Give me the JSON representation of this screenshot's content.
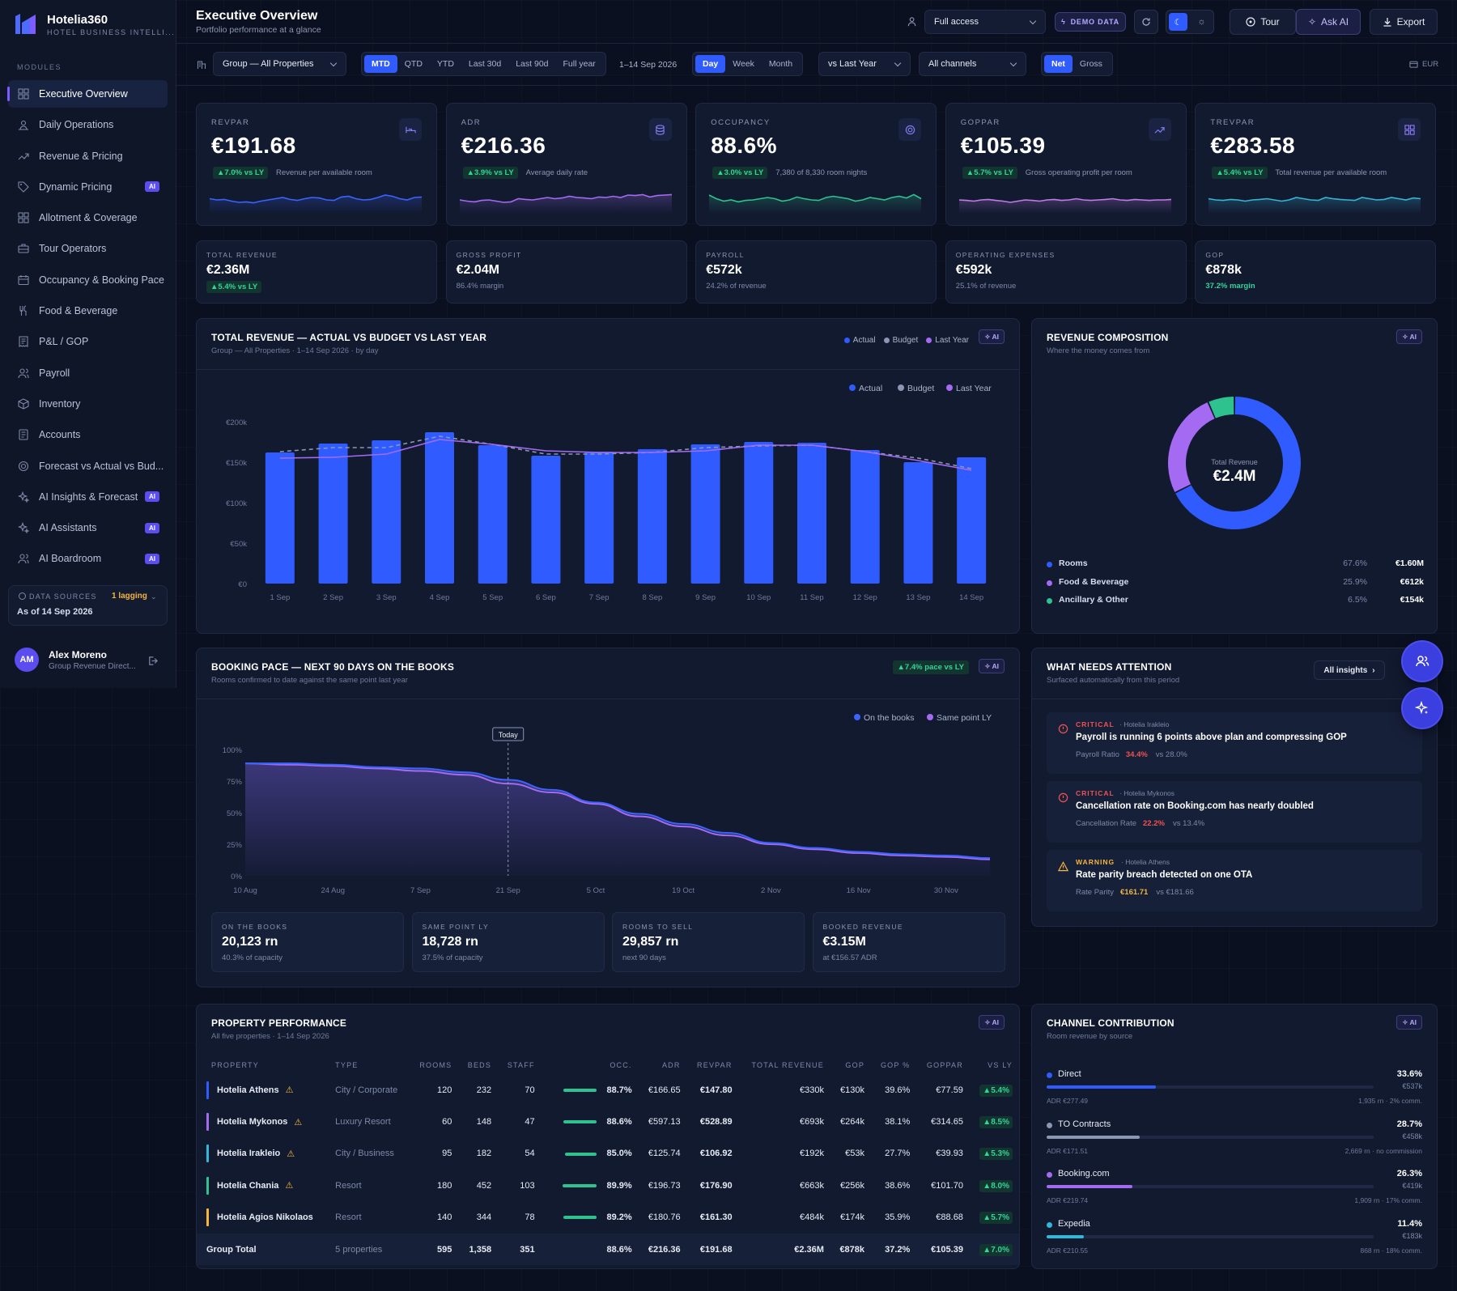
{
  "app": {
    "name": "Hotelia360",
    "tagline": "HOTEL BUSINESS INTELLI..."
  },
  "sidebar": {
    "section_label": "MODULES",
    "items": [
      {
        "label": "Executive Overview",
        "icon": "grid-icon",
        "active": true,
        "ai": false
      },
      {
        "label": "Daily Operations",
        "icon": "operations-icon",
        "active": false,
        "ai": false
      },
      {
        "label": "Revenue & Pricing",
        "icon": "trend-icon",
        "active": false,
        "ai": false
      },
      {
        "label": "Dynamic Pricing",
        "icon": "tag-icon",
        "active": false,
        "ai": true
      },
      {
        "label": "Allotment & Coverage",
        "icon": "grid-icon",
        "active": false,
        "ai": false
      },
      {
        "label": "Tour Operators",
        "icon": "briefcase-icon",
        "active": false,
        "ai": false
      },
      {
        "label": "Occupancy & Booking Pace",
        "icon": "calendar-icon",
        "active": false,
        "ai": false
      },
      {
        "label": "Food & Beverage",
        "icon": "utensils-icon",
        "active": false,
        "ai": false
      },
      {
        "label": "P&L / GOP",
        "icon": "receipt-icon",
        "active": false,
        "ai": false
      },
      {
        "label": "Payroll",
        "icon": "users-icon",
        "active": false,
        "ai": false
      },
      {
        "label": "Inventory",
        "icon": "box-icon",
        "active": false,
        "ai": false
      },
      {
        "label": "Accounts",
        "icon": "ledger-icon",
        "active": false,
        "ai": false
      },
      {
        "label": "Forecast vs Actual vs Bud...",
        "icon": "target-icon",
        "active": false,
        "ai": false
      },
      {
        "label": "AI Insights & Forecast",
        "icon": "sparkle-icon",
        "active": false,
        "ai": true
      },
      {
        "label": "AI Assistants",
        "icon": "sparkle-icon",
        "active": false,
        "ai": true
      },
      {
        "label": "AI Boardroom",
        "icon": "users-icon",
        "active": false,
        "ai": true
      }
    ],
    "ai_badge": "AI",
    "data_sources": {
      "label": "DATA SOURCES",
      "status": "1 lagging",
      "as_of": "As of 14 Sep 2026"
    },
    "user": {
      "initials": "AM",
      "name": "Alex Moreno",
      "role": "Group Revenue Direct..."
    }
  },
  "header": {
    "title": "Executive Overview",
    "subtitle": "Portfolio performance at a glance",
    "access": "Full access",
    "demo": "DEMO DATA",
    "tour": "Tour",
    "ask_ai": "Ask AI",
    "export": "Export"
  },
  "filters": {
    "property": "Group — All Properties",
    "periods": [
      "MTD",
      "QTD",
      "YTD",
      "Last 30d",
      "Last 90d",
      "Full year"
    ],
    "active_period": "MTD",
    "range": "1–14 Sep 2026",
    "granularity": [
      "Day",
      "Week",
      "Month"
    ],
    "active_granularity": "Day",
    "compare": "vs Last Year",
    "channels": "All channels",
    "net_gross": [
      "Net",
      "Gross"
    ],
    "active_net": "Net",
    "currency": "EUR"
  },
  "kpis": [
    {
      "label": "REVPAR",
      "value": "€191.68",
      "delta": "▲7.0% vs LY",
      "desc": "Revenue per available room",
      "icon": "bed-icon",
      "spark": [
        0.55,
        0.5,
        0.52,
        0.45,
        0.4,
        0.42,
        0.38,
        0.45,
        0.5,
        0.55,
        0.6,
        0.52,
        0.48,
        0.55,
        0.6,
        0.58,
        0.5,
        0.48,
        0.62,
        0.65,
        0.55,
        0.5,
        0.52,
        0.6,
        0.7,
        0.65,
        0.55,
        0.5,
        0.6,
        0.62
      ],
      "color": "#3b63ff"
    },
    {
      "label": "ADR",
      "value": "€216.36",
      "delta": "▲3.9% vs LY",
      "desc": "Average daily rate",
      "icon": "database-icon",
      "spark": [
        0.5,
        0.45,
        0.42,
        0.48,
        0.5,
        0.45,
        0.4,
        0.42,
        0.55,
        0.52,
        0.5,
        0.55,
        0.6,
        0.55,
        0.58,
        0.65,
        0.6,
        0.58,
        0.55,
        0.62,
        0.6,
        0.65,
        0.6,
        0.7,
        0.68,
        0.72,
        0.62,
        0.68,
        0.7,
        0.72
      ],
      "color": "#a46bf2"
    },
    {
      "label": "OCCUPANCY",
      "value": "88.6%",
      "delta": "▲3.0% vs LY",
      "desc": "7,380 of 8,330 room nights",
      "icon": "target-icon",
      "spark": [
        0.7,
        0.55,
        0.45,
        0.5,
        0.42,
        0.48,
        0.5,
        0.55,
        0.6,
        0.55,
        0.45,
        0.5,
        0.62,
        0.55,
        0.5,
        0.48,
        0.6,
        0.65,
        0.6,
        0.55,
        0.45,
        0.5,
        0.6,
        0.55,
        0.5,
        0.6,
        0.65,
        0.58,
        0.72,
        0.55
      ],
      "color": "#2ec28f"
    },
    {
      "label": "GOPPAR",
      "value": "€105.39",
      "delta": "▲5.7% vs LY",
      "desc": "Gross operating profit per room",
      "icon": "trend-icon",
      "spark": [
        0.5,
        0.48,
        0.45,
        0.5,
        0.52,
        0.48,
        0.45,
        0.4,
        0.45,
        0.5,
        0.48,
        0.45,
        0.5,
        0.52,
        0.48,
        0.5,
        0.55,
        0.5,
        0.48,
        0.5,
        0.52,
        0.55,
        0.5,
        0.48,
        0.52,
        0.5,
        0.48,
        0.5,
        0.5,
        0.52
      ],
      "color": "#c07ce8"
    },
    {
      "label": "TREVPAR",
      "value": "€283.58",
      "delta": "▲5.4% vs LY",
      "desc": "Total revenue per available room",
      "icon": "grid-icon",
      "spark": [
        0.55,
        0.5,
        0.48,
        0.52,
        0.5,
        0.45,
        0.5,
        0.52,
        0.55,
        0.5,
        0.45,
        0.5,
        0.6,
        0.55,
        0.5,
        0.48,
        0.6,
        0.55,
        0.52,
        0.5,
        0.48,
        0.6,
        0.55,
        0.5,
        0.52,
        0.6,
        0.55,
        0.5,
        0.58,
        0.55
      ],
      "color": "#35b6d6"
    }
  ],
  "summary": [
    {
      "label": "TOTAL REVENUE",
      "value": "€2.36M",
      "sub": "▲5.4% vs LY",
      "chip": true
    },
    {
      "label": "GROSS PROFIT",
      "value": "€2.04M",
      "sub": "86.4% margin",
      "chip": false
    },
    {
      "label": "PAYROLL",
      "value": "€572k",
      "sub": "24.2% of revenue",
      "chip": false
    },
    {
      "label": "OPERATING EXPENSES",
      "value": "€592k",
      "sub": "25.1% of revenue",
      "chip": false
    },
    {
      "label": "GOP",
      "value": "€878k",
      "sub": "37.2% margin",
      "chip": false,
      "green": true
    }
  ],
  "revenue_chart": {
    "title": "TOTAL REVENUE — ACTUAL VS BUDGET VS LAST YEAR",
    "subtitle": "Group — All Properties · 1–14 Sep 2026 · by day",
    "ai": "AI"
  },
  "composition": {
    "title": "REVENUE COMPOSITION",
    "subtitle": "Where the money comes from",
    "ai": "AI",
    "center_label": "Total Revenue",
    "center_value": "€2.4M",
    "items": [
      {
        "name": "Rooms",
        "pct": "67.6%",
        "value": "€1.60M",
        "color": "#2f5bff"
      },
      {
        "name": "Food & Beverage",
        "pct": "25.9%",
        "value": "€612k",
        "color": "#a46bf2"
      },
      {
        "name": "Ancillary & Other",
        "pct": "6.5%",
        "value": "€154k",
        "color": "#2ec28f"
      }
    ]
  },
  "pace": {
    "title": "BOOKING PACE — NEXT 90 DAYS ON THE BOOKS",
    "subtitle": "Rooms confirmed to date against the same point last year",
    "chip": "▲7.4% pace vs LY",
    "ai": "AI",
    "stats": [
      {
        "label": "ON THE BOOKS",
        "value": "20,123 rn",
        "sub": "40.3% of capacity"
      },
      {
        "label": "SAME POINT LY",
        "value": "18,728 rn",
        "sub": "37.5% of capacity"
      },
      {
        "label": "ROOMS TO SELL",
        "value": "29,857 rn",
        "sub": "next 90 days"
      },
      {
        "label": "BOOKED REVENUE",
        "value": "€3.15M",
        "sub": "at €156.57 ADR"
      }
    ]
  },
  "attention": {
    "title": "WHAT NEEDS ATTENTION",
    "subtitle": "Surfaced automatically from this period",
    "all": "All insights",
    "items": [
      {
        "severity": "CRITICAL",
        "property": "· Hotelia Irakleio",
        "title": "Payroll is running 6 points above plan and compressing GOP",
        "metric": "Payroll Ratio",
        "val": "34.4%",
        "cmp": "vs 28.0%",
        "color": "#f05252"
      },
      {
        "severity": "CRITICAL",
        "property": "· Hotelia Mykonos",
        "title": "Cancellation rate on Booking.com has nearly doubled",
        "metric": "Cancellation Rate",
        "val": "22.2%",
        "cmp": "vs 13.4%",
        "color": "#f05252"
      },
      {
        "severity": "WARNING",
        "property": "· Hotelia Athens",
        "title": "Rate parity breach detected on one OTA",
        "metric": "Rate Parity",
        "val": "€161.71",
        "cmp": "vs €181.66",
        "color": "#f5b53d"
      }
    ]
  },
  "properties": {
    "title": "PROPERTY PERFORMANCE",
    "subtitle": "All five properties · 1–14 Sep 2026",
    "ai": "AI",
    "headers": [
      "PROPERTY",
      "TYPE",
      "ROOMS",
      "BEDS",
      "STAFF",
      "OCC.",
      "ADR",
      "REVPAR",
      "TOTAL REVENUE",
      "GOP",
      "GOP %",
      "GOPPAR",
      "VS LY"
    ],
    "rows": [
      {
        "name": "Hotelia Athens",
        "type": "City / Corporate",
        "rooms": "120",
        "beds": "232",
        "staff": "70",
        "occ": "88.7%",
        "occ_fill": 0.887,
        "adr": "€166.65",
        "revpar": "€147.80",
        "rev": "€330k",
        "gop": "€130k",
        "gop_pct": "39.6%",
        "goppar": "€77.59",
        "vsly": "▲5.4%",
        "color": "#2f5bff",
        "warn": true
      },
      {
        "name": "Hotelia Mykonos",
        "type": "Luxury Resort",
        "rooms": "60",
        "beds": "148",
        "staff": "47",
        "occ": "88.6%",
        "occ_fill": 0.886,
        "adr": "€597.13",
        "revpar": "€528.89",
        "rev": "€693k",
        "gop": "€264k",
        "gop_pct": "38.1%",
        "goppar": "€314.65",
        "vsly": "▲8.5%",
        "color": "#a46bf2",
        "warn": true
      },
      {
        "name": "Hotelia Irakleio",
        "type": "City / Business",
        "rooms": "95",
        "beds": "182",
        "staff": "54",
        "occ": "85.0%",
        "occ_fill": 0.85,
        "adr": "€125.74",
        "revpar": "€106.92",
        "rev": "€192k",
        "gop": "€53k",
        "gop_pct": "27.7%",
        "goppar": "€39.93",
        "vsly": "▲5.3%",
        "color": "#35b6d6",
        "warn": true
      },
      {
        "name": "Hotelia Chania",
        "type": "Resort",
        "rooms": "180",
        "beds": "452",
        "staff": "103",
        "occ": "89.9%",
        "occ_fill": 0.899,
        "adr": "€196.73",
        "revpar": "€176.90",
        "rev": "€663k",
        "gop": "€256k",
        "gop_pct": "38.6%",
        "goppar": "€101.70",
        "vsly": "▲8.0%",
        "color": "#2ec28f",
        "warn": true
      },
      {
        "name": "Hotelia Agios Nikolaos",
        "type": "Resort",
        "rooms": "140",
        "beds": "344",
        "staff": "78",
        "occ": "89.2%",
        "occ_fill": 0.892,
        "adr": "€180.76",
        "revpar": "€161.30",
        "rev": "€484k",
        "gop": "€174k",
        "gop_pct": "35.9%",
        "goppar": "€88.68",
        "vsly": "▲5.7%",
        "color": "#f5b53d",
        "warn": false
      }
    ],
    "total": {
      "name": "Group Total",
      "type": "5 properties",
      "rooms": "595",
      "beds": "1,358",
      "staff": "351",
      "occ": "88.6%",
      "adr": "€216.36",
      "revpar": "€191.68",
      "rev": "€2.36M",
      "gop": "€878k",
      "gop_pct": "37.2%",
      "goppar": "€105.39",
      "vsly": "▲7.0%"
    }
  },
  "channels": {
    "title": "CHANNEL CONTRIBUTION",
    "subtitle": "Room revenue by source",
    "ai": "AI",
    "items": [
      {
        "name": "Direct",
        "pct": "33.6%",
        "share": 0.336,
        "value": "€537k",
        "adr": "ADR €277.49",
        "detail": "1,935 rn · 2% comm.",
        "color": "#2f5bff"
      },
      {
        "name": "TO Contracts",
        "pct": "28.7%",
        "share": 0.287,
        "value": "€458k",
        "adr": "ADR €171.51",
        "detail": "2,669 rn · no commission",
        "color": "#8b96b3"
      },
      {
        "name": "Booking.com",
        "pct": "26.3%",
        "share": 0.263,
        "value": "€419k",
        "adr": "ADR €219.74",
        "detail": "1,909 rn · 17% comm.",
        "color": "#a46bf2"
      },
      {
        "name": "Expedia",
        "pct": "11.4%",
        "share": 0.114,
        "value": "€183k",
        "adr": "ADR €210.55",
        "detail": "868 rn · 18% comm.",
        "color": "#35b6d6"
      }
    ]
  },
  "chart_data": [
    {
      "type": "bar",
      "title": "TOTAL REVENUE — ACTUAL VS BUDGET VS LAST YEAR",
      "categories": [
        "1 Sep",
        "2 Sep",
        "3 Sep",
        "4 Sep",
        "5 Sep",
        "6 Sep",
        "7 Sep",
        "8 Sep",
        "9 Sep",
        "10 Sep",
        "11 Sep",
        "12 Sep",
        "13 Sep",
        "14 Sep"
      ],
      "series": [
        {
          "name": "Actual",
          "values": [
            162,
            173,
            177,
            187,
            171,
            158,
            163,
            166,
            172,
            175,
            174,
            165,
            150,
            156
          ],
          "color": "#2f5bff"
        },
        {
          "name": "Budget",
          "values": [
            163,
            168,
            168,
            182,
            172,
            160,
            160,
            162,
            168,
            170,
            171,
            163,
            155,
            142
          ],
          "color": "#8b96b3"
        },
        {
          "name": "Last Year",
          "values": [
            155,
            156,
            160,
            178,
            172,
            164,
            162,
            162,
            164,
            171,
            171,
            163,
            152,
            140
          ],
          "color": "#a46bf2"
        }
      ],
      "yticks": [
        "€0",
        "€50k",
        "€100k",
        "€150k",
        "€200k"
      ],
      "ylim": [
        0,
        200
      ],
      "legend": "top-right"
    },
    {
      "type": "pie",
      "title": "REVENUE COMPOSITION",
      "categories": [
        "Rooms",
        "Food & Beverage",
        "Ancillary & Other"
      ],
      "values": [
        67.6,
        25.9,
        6.5
      ]
    },
    {
      "type": "area",
      "title": "BOOKING PACE — NEXT 90 DAYS ON THE BOOKS",
      "x": [
        "10 Aug",
        "17 Aug",
        "24 Aug",
        "31 Aug",
        "7 Sep",
        "14 Sep",
        "21 Sep",
        "28 Sep",
        "5 Oct",
        "12 Oct",
        "19 Oct",
        "26 Oct",
        "2 Nov",
        "9 Nov",
        "16 Nov",
        "23 Nov",
        "30 Nov",
        "7 Dec"
      ],
      "xticks": [
        "10 Aug",
        "24 Aug",
        "7 Sep",
        "21 Sep",
        "5 Oct",
        "19 Oct",
        "2 Nov",
        "16 Nov",
        "30 Nov"
      ],
      "series": [
        {
          "name": "On the books",
          "values": [
            89,
            89,
            88,
            86,
            85,
            82,
            76,
            68,
            58,
            49,
            41,
            34,
            26,
            22,
            19,
            17,
            16,
            14
          ],
          "color": "#3b63ff"
        },
        {
          "name": "Same point LY",
          "values": [
            89,
            88,
            87,
            85,
            83,
            80,
            73,
            66,
            57,
            47,
            39,
            32,
            25,
            21,
            18,
            16,
            15,
            13
          ],
          "color": "#a46bf2"
        }
      ],
      "yticks": [
        "0%",
        "25%",
        "50%",
        "75%",
        "100%"
      ],
      "ylim": [
        0,
        100
      ],
      "marker": "Today",
      "legend": "top-right"
    }
  ]
}
